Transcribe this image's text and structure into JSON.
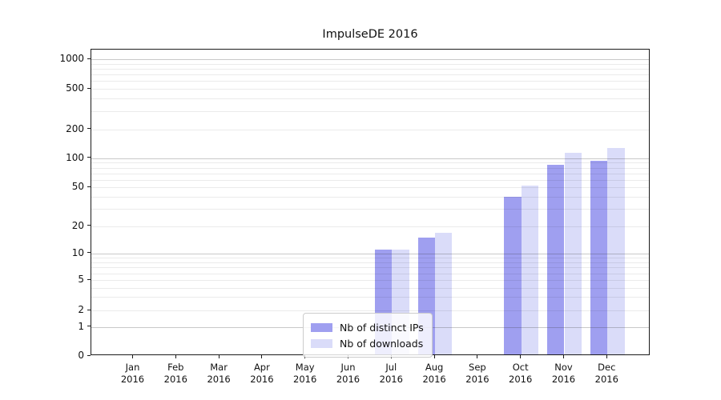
{
  "chart_data": {
    "type": "bar",
    "title": "ImpulseDE 2016",
    "categories": [
      "Jan",
      "Feb",
      "Mar",
      "Apr",
      "May",
      "Jun",
      "Jul",
      "Aug",
      "Sep",
      "Oct",
      "Nov",
      "Dec"
    ],
    "category_year": "2016",
    "series": [
      {
        "name": "Nb of distinct IPs",
        "color": "#9f9ff0",
        "values": [
          0,
          0,
          0,
          0,
          0,
          0,
          11,
          15,
          0,
          40,
          85,
          95
        ]
      },
      {
        "name": "Nb of downloads",
        "color": "#dadcf9",
        "values": [
          0,
          0,
          0,
          0,
          0,
          0,
          11,
          17,
          0,
          52,
          114,
          128
        ]
      }
    ],
    "xlabel": "",
    "ylabel": "",
    "yscale": "symlog",
    "yticks": [
      0,
      1,
      2,
      5,
      10,
      20,
      50,
      100,
      200,
      500,
      1000
    ],
    "ylim": [
      0,
      1300
    ],
    "grid": true,
    "legend_position": "inside-bottom-center"
  }
}
